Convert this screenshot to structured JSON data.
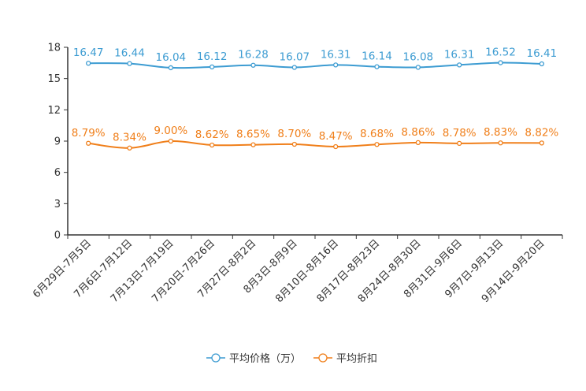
{
  "chart_data": {
    "type": "line",
    "title": "",
    "xlabel": "",
    "ylabel": "",
    "ylim": [
      0,
      18
    ],
    "yticks": [
      0,
      3,
      6,
      9,
      12,
      15,
      18
    ],
    "grid": false,
    "legend_position": "bottom-center",
    "categories": [
      "6月29日-7月5日",
      "7月6日-7月12日",
      "7月13日-7月19日",
      "7月20日-7月26日",
      "7月27日-8月2日",
      "8月3日-8月9日",
      "8月10日-8月16日",
      "8月17日-8月23日",
      "8月24日-8月30日",
      "8月31日-9月6日",
      "9月7日-9月13日",
      "9月14日-9月20日"
    ],
    "series": [
      {
        "name": "平均价格（万）",
        "color": "#3d9cd2",
        "values": [
          16.47,
          16.44,
          16.04,
          16.12,
          16.28,
          16.07,
          16.31,
          16.14,
          16.08,
          16.31,
          16.52,
          16.41
        ],
        "labels": [
          "16.47",
          "16.44",
          "16.04",
          "16.12",
          "16.28",
          "16.07",
          "16.31",
          "16.14",
          "16.08",
          "16.31",
          "16.52",
          "16.41"
        ]
      },
      {
        "name": "平均折扣",
        "color": "#f07f1a",
        "values": [
          8.79,
          8.34,
          9.0,
          8.62,
          8.65,
          8.7,
          8.47,
          8.68,
          8.86,
          8.78,
          8.83,
          8.82
        ],
        "labels": [
          "8.79%",
          "8.34%",
          "9.00%",
          "8.62%",
          "8.65%",
          "8.70%",
          "8.47%",
          "8.68%",
          "8.86%",
          "8.78%",
          "8.83%",
          "8.82%"
        ]
      }
    ]
  }
}
